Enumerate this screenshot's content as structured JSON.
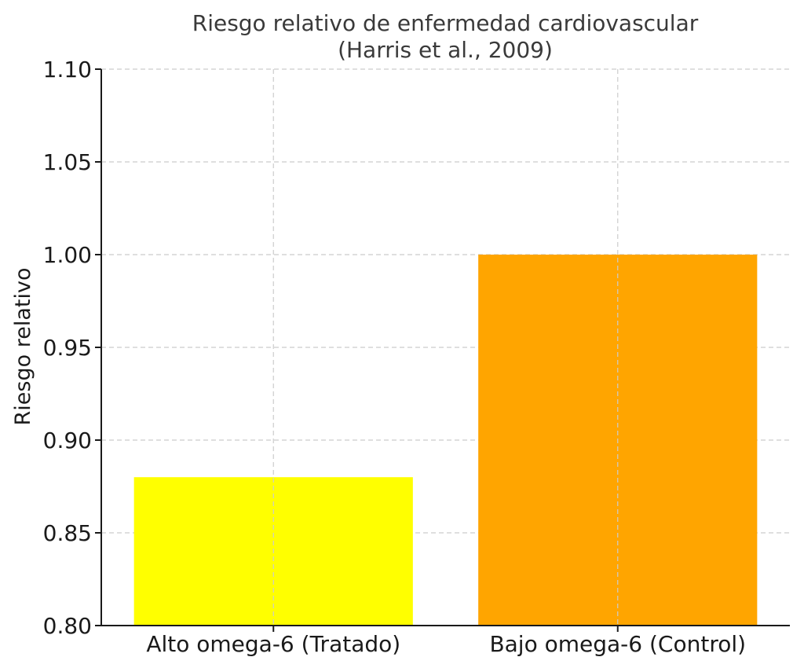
{
  "chart_data": {
    "type": "bar",
    "title": "Riesgo relativo de enfermedad cardiovascular",
    "subtitle": "(Harris et al., 2009)",
    "xlabel": "",
    "ylabel": "Riesgo relativo",
    "categories": [
      "Alto omega-6 (Tratado)",
      "Bajo omega-6 (Control)"
    ],
    "values": [
      0.88,
      1.0
    ],
    "colors": [
      "#ffff00",
      "#ffa500"
    ],
    "ylim": [
      0.8,
      1.1
    ],
    "yticks": [
      "0.80",
      "0.85",
      "0.90",
      "0.95",
      "1.00",
      "1.05",
      "1.10"
    ],
    "grid": true,
    "legend": "none"
  }
}
